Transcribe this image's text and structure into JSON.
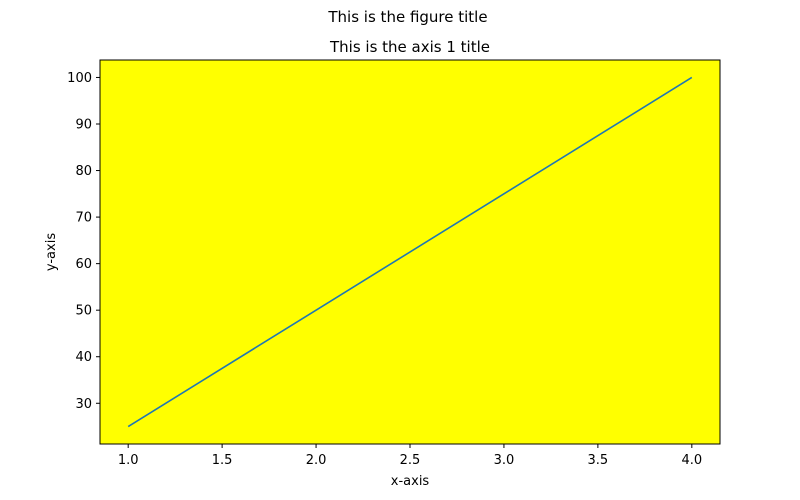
{
  "figure_title": "This is the figure title",
  "chart_data": {
    "type": "line",
    "title": "This is the axis 1 title",
    "xlabel": "x-axis",
    "ylabel": "y-axis",
    "plot_background": "#ffff00",
    "line_color": "#1f77b4",
    "xlim": [
      0.85,
      4.15
    ],
    "ylim": [
      21.25,
      103.75
    ],
    "xticks": [
      1.0,
      1.5,
      2.0,
      2.5,
      3.0,
      3.5,
      4.0
    ],
    "xtick_labels": [
      "1.0",
      "1.5",
      "2.0",
      "2.5",
      "3.0",
      "3.5",
      "4.0"
    ],
    "yticks": [
      30,
      40,
      50,
      60,
      70,
      80,
      90,
      100
    ],
    "ytick_labels": [
      "30",
      "40",
      "50",
      "60",
      "70",
      "80",
      "90",
      "100"
    ],
    "series": [
      {
        "x": [
          1,
          2,
          3,
          4
        ],
        "values": [
          25,
          50,
          75,
          100
        ]
      }
    ],
    "grid": false,
    "legend": "none"
  }
}
